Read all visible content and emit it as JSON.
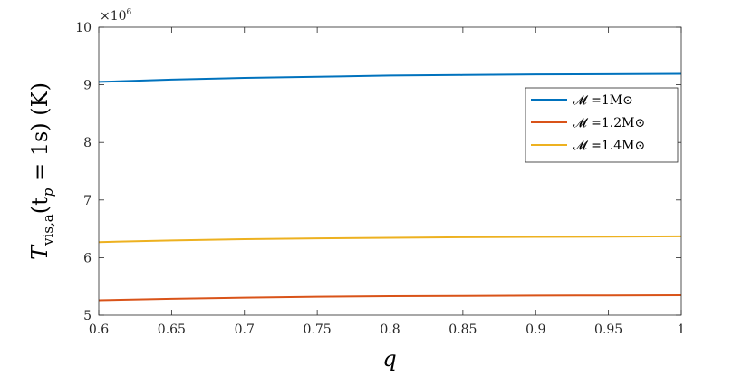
{
  "chart_data": {
    "type": "line",
    "xlabel": "q",
    "ylabel": "T",
    "ylabel_sub": "vis,a",
    "ylabel_rest": "(t",
    "ylabel_rest_sub": "p",
    "ylabel_tail": " = 1s) (K)",
    "xlim": [
      0.6,
      1.0
    ],
    "ylim": [
      5,
      10
    ],
    "y_multiplier": "×10",
    "y_multiplier_exp": "6",
    "x_ticks": [
      "0.6",
      "0.65",
      "0.7",
      "0.75",
      "0.8",
      "0.85",
      "0.9",
      "0.95",
      "1"
    ],
    "y_ticks": [
      "5",
      "6",
      "7",
      "8",
      "9",
      "10"
    ],
    "grid": false,
    "legend_position": "top-right",
    "x": [
      0.6,
      0.65,
      0.7,
      0.75,
      0.8,
      0.85,
      0.9,
      0.95,
      1.0
    ],
    "series": [
      {
        "name": "𝓜 =1M⊙",
        "color": "#0072BD",
        "values": [
          9.05,
          9.09,
          9.12,
          9.14,
          9.16,
          9.17,
          9.18,
          9.185,
          9.19
        ]
      },
      {
        "name": "𝓜 =1.2M⊙",
        "color": "#D95319",
        "values": [
          5.26,
          5.285,
          5.305,
          5.32,
          5.33,
          5.335,
          5.34,
          5.343,
          5.345
        ]
      },
      {
        "name": "𝓜 =1.4M⊙",
        "color": "#EDB120",
        "values": [
          6.27,
          6.3,
          6.32,
          6.335,
          6.345,
          6.355,
          6.36,
          6.365,
          6.37
        ]
      }
    ]
  }
}
